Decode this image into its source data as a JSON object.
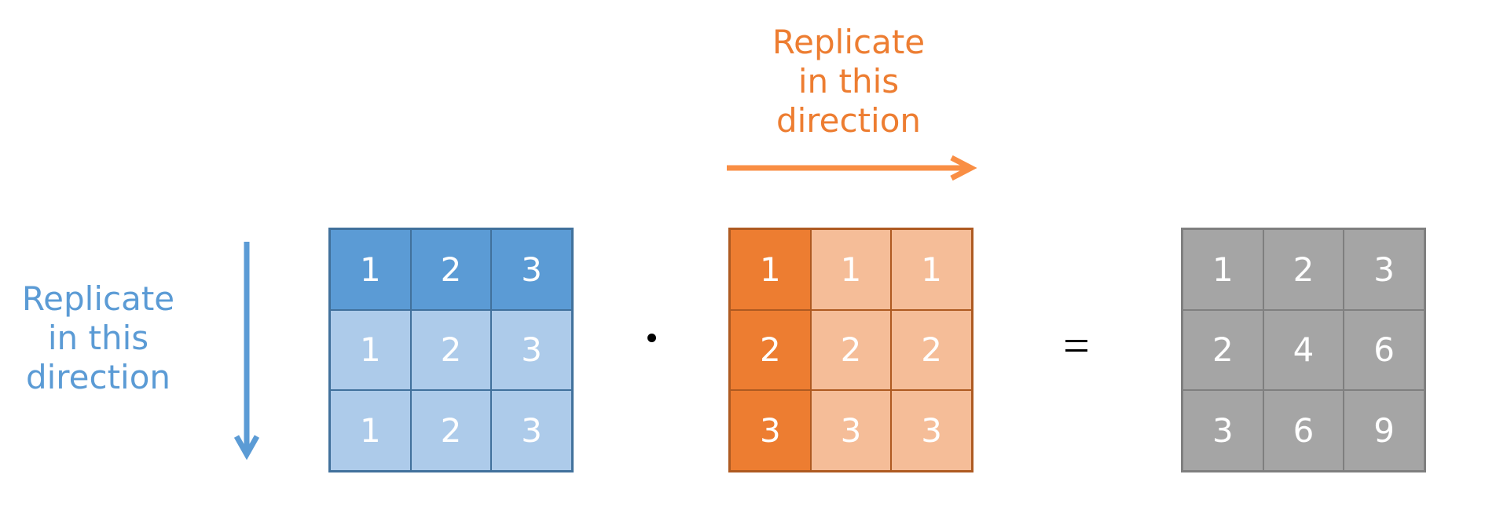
{
  "blue_label": [
    "Replicate",
    "in this",
    "direction"
  ],
  "orange_label": [
    "Replicate",
    "in this",
    "direction"
  ],
  "colors": {
    "blue_dark": "#5b9bd5",
    "blue_light": "#adcbea",
    "orange_dark": "#ed7d31",
    "orange_light": "#f5bd98",
    "gray": "#a5a5a5",
    "arrow_blue": "#5b9bd5",
    "arrow_orange": "#f98e44"
  },
  "matrices": {
    "a": [
      [
        "1",
        "2",
        "3"
      ],
      [
        "1",
        "2",
        "3"
      ],
      [
        "1",
        "2",
        "3"
      ]
    ],
    "b": [
      [
        "1",
        "1",
        "1"
      ],
      [
        "2",
        "2",
        "2"
      ],
      [
        "3",
        "3",
        "3"
      ]
    ],
    "c": [
      [
        "1",
        "2",
        "3"
      ],
      [
        "2",
        "4",
        "6"
      ],
      [
        "3",
        "6",
        "9"
      ]
    ]
  },
  "operators": {
    "multiply": "dot",
    "equals": "equals"
  }
}
